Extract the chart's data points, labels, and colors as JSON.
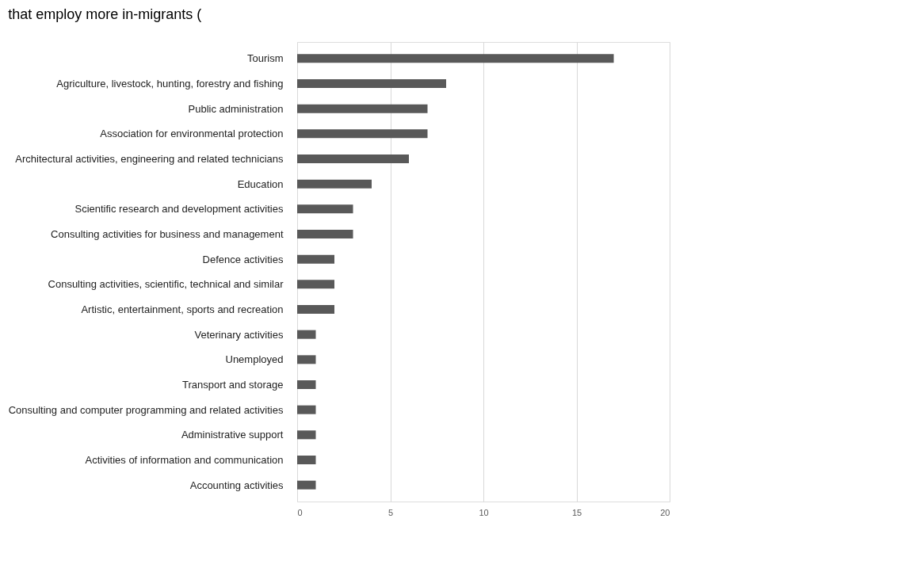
{
  "chart_data": {
    "type": "bar",
    "orientation": "horizontal",
    "title": "that employ more in-migrants (",
    "categories": [
      "Tourism",
      "Agriculture, livestock, hunting, forestry and fishing",
      "Public administration",
      "Association for environmental protection",
      "Architectural activities, engineering and related technicians",
      "Education",
      "Scientific research and development activities",
      "Consulting activities for business and management",
      "Defence activities",
      "Consulting activities, scientific, technical and similar",
      "Artistic, entertainment, sports and recreation",
      "Veterinary activities",
      "Unemployed",
      "Transport and storage",
      "Consulting and computer programming and related activities",
      "Administrative support",
      "Activities of information and communication",
      "Accounting activities"
    ],
    "values": [
      17,
      8,
      7,
      7,
      6,
      4,
      3,
      3,
      2,
      2,
      2,
      1,
      1,
      1,
      1,
      1,
      1,
      1
    ],
    "color": "#595959",
    "xlim": [
      0,
      20
    ],
    "xticks": [
      0,
      5,
      10,
      15,
      20
    ],
    "grid": "x"
  }
}
